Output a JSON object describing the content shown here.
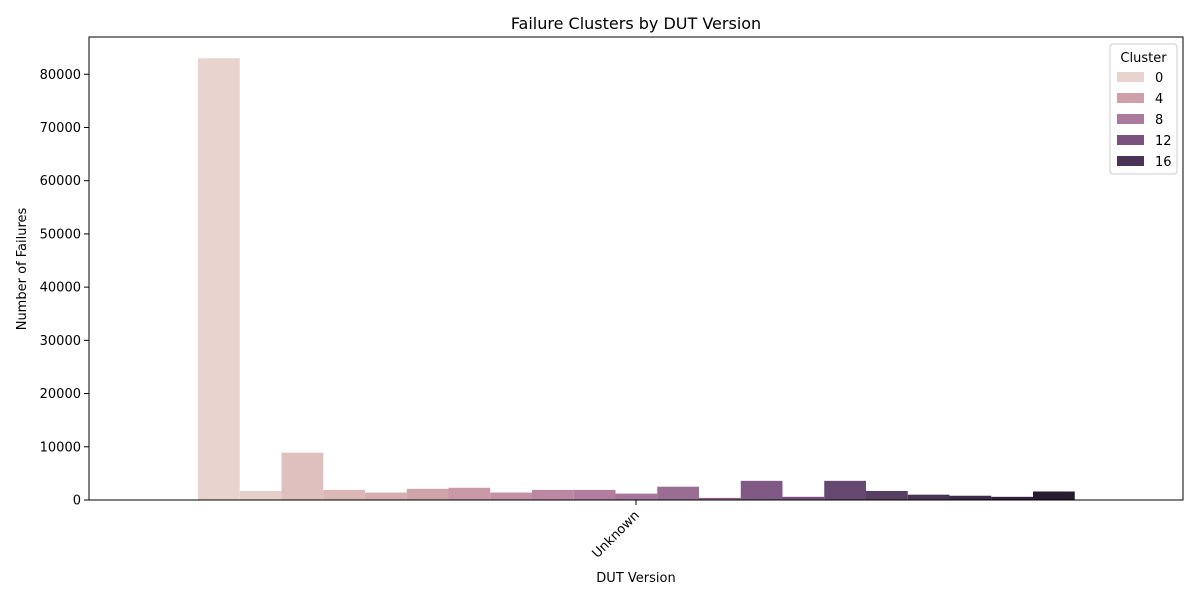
{
  "chart_data": {
    "type": "bar",
    "title": "Failure Clusters by DUT Version",
    "xlabel": "DUT Version",
    "ylabel": "Number of Failures",
    "categories": [
      "Unknown"
    ],
    "ylim": [
      0,
      87000
    ],
    "yticks": [
      0,
      10000,
      20000,
      30000,
      40000,
      50000,
      60000,
      70000,
      80000
    ],
    "ytick_labels": [
      "0",
      "10000",
      "20000",
      "30000",
      "40000",
      "50000",
      "60000",
      "70000",
      "80000"
    ],
    "grid": false,
    "legend_position": "top-right",
    "legend_title": "Cluster",
    "legend_entries": [
      {
        "label": "0",
        "color": "#e8d3cf"
      },
      {
        "label": "4",
        "color": "#d0a0aa"
      },
      {
        "label": "8",
        "color": "#ad7a9f"
      },
      {
        "label": "12",
        "color": "#7a527e"
      },
      {
        "label": "16",
        "color": "#4b3358"
      }
    ],
    "series": [
      {
        "cluster": 0,
        "value": 83000,
        "color": "#e8d3cf"
      },
      {
        "cluster": 1,
        "value": 1700,
        "color": "#e6cfcb"
      },
      {
        "cluster": 2,
        "value": 8900,
        "color": "#e0bfbf"
      },
      {
        "cluster": 3,
        "value": 1900,
        "color": "#dbb7b8"
      },
      {
        "cluster": 4,
        "value": 1400,
        "color": "#d6aeb1"
      },
      {
        "cluster": 5,
        "value": 2100,
        "color": "#d0a4ab"
      },
      {
        "cluster": 6,
        "value": 2300,
        "color": "#ca99a7"
      },
      {
        "cluster": 7,
        "value": 1400,
        "color": "#c390a4"
      },
      {
        "cluster": 8,
        "value": 1900,
        "color": "#bc87a2"
      },
      {
        "cluster": 9,
        "value": 1900,
        "color": "#b27ea0"
      },
      {
        "cluster": 10,
        "value": 1200,
        "color": "#a5759a"
      },
      {
        "cluster": 11,
        "value": 2500,
        "color": "#9a6d93"
      },
      {
        "cluster": 12,
        "value": 400,
        "color": "#8e648c"
      },
      {
        "cluster": 13,
        "value": 3600,
        "color": "#805a84"
      },
      {
        "cluster": 14,
        "value": 600,
        "color": "#73517b"
      },
      {
        "cluster": 15,
        "value": 3600,
        "color": "#664870"
      },
      {
        "cluster": 16,
        "value": 1700,
        "color": "#573e63"
      },
      {
        "cluster": 17,
        "value": 1000,
        "color": "#4a3456"
      },
      {
        "cluster": 18,
        "value": 800,
        "color": "#3e2b49"
      },
      {
        "cluster": 19,
        "value": 600,
        "color": "#32233c"
      },
      {
        "cluster": 20,
        "value": 1600,
        "color": "#261b2f"
      }
    ]
  }
}
